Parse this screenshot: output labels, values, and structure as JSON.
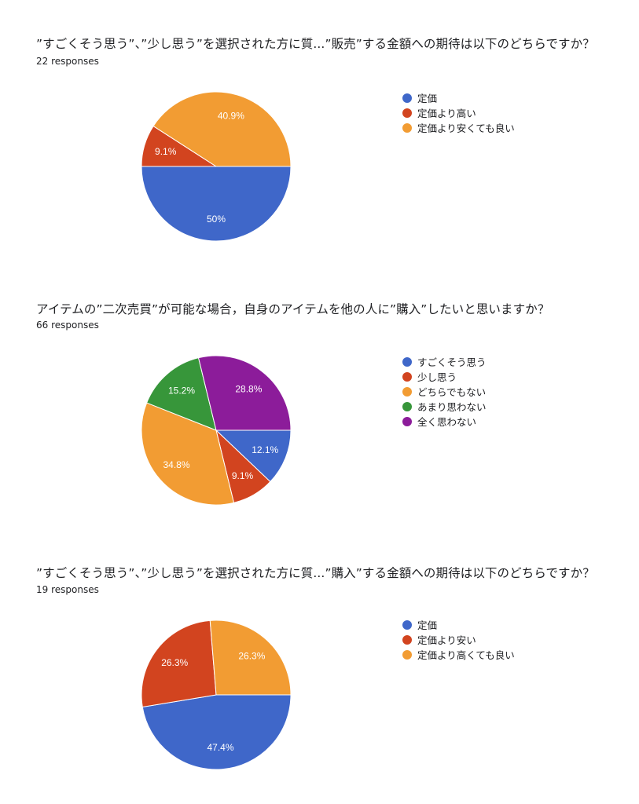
{
  "colors": {
    "blue": "#3f67c9",
    "red": "#d2441f",
    "orange": "#f29c33",
    "green": "#37963a",
    "purple": "#8c1c9a"
  },
  "chart_data": [
    {
      "type": "pie",
      "title": "”すごくそう思う”、”少し思う”を選択された方に質...”販売”する金額への期待は以下のどちらですか？",
      "responses": "22 responses",
      "legend_position": "right",
      "categories": [
        "定価",
        "定価より高い",
        "定価より安くても良い"
      ],
      "values": [
        50,
        9.1,
        40.9
      ],
      "data_labels": [
        "50%",
        "9.1%",
        "40.9%"
      ],
      "colors": [
        "#3f67c9",
        "#d2441f",
        "#f29c33"
      ]
    },
    {
      "type": "pie",
      "title": "アイテムの”二次売買”が可能な場合，自身のアイテムを他の人に”購入”したいと思いますか？",
      "responses": "66 responses",
      "legend_position": "right",
      "categories": [
        "すごくそう思う",
        "少し思う",
        "どちらでもない",
        "あまり思わない",
        "全く思わない"
      ],
      "values": [
        12.1,
        9.1,
        34.8,
        15.2,
        28.8
      ],
      "data_labels": [
        "12.1%",
        "9.1%",
        "34.8%",
        "15.2%",
        "28.8%"
      ],
      "colors": [
        "#3f67c9",
        "#d2441f",
        "#f29c33",
        "#37963a",
        "#8c1c9a"
      ]
    },
    {
      "type": "pie",
      "title": "”すごくそう思う”、”少し思う”を選択された方に質...”購入”する金額への期待は以下のどちらですか？",
      "responses": "19 responses",
      "legend_position": "right",
      "categories": [
        "定価",
        "定価より安い",
        "定価より高くても良い"
      ],
      "values": [
        47.4,
        26.3,
        26.3
      ],
      "data_labels": [
        "47.4%",
        "26.3%",
        "26.3%"
      ],
      "colors": [
        "#3f67c9",
        "#d2441f",
        "#f29c33"
      ]
    }
  ]
}
